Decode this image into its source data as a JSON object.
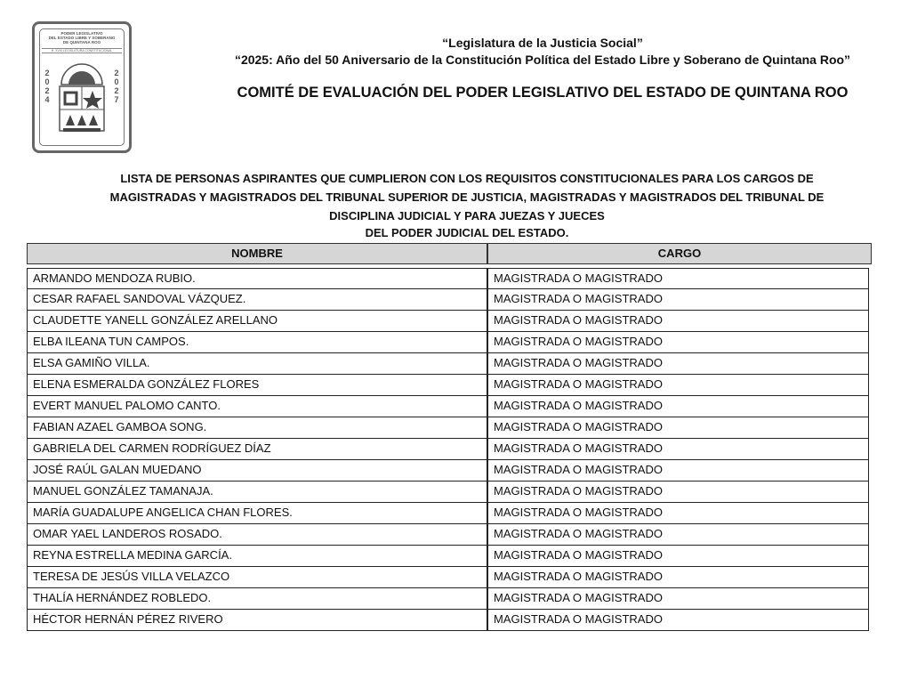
{
  "logo": {
    "lines": [
      "PODER LEGISLATIVO",
      "DEL ESTADO LIBRE Y SOBERANO",
      "DE QUINTANA ROO"
    ],
    "sub": "H. XVIII LEGISLATURA CONSTITUCIONAL",
    "year_left": "2024",
    "year_right": "2027"
  },
  "header": {
    "line1": "“Legislatura de la Justicia Social”",
    "line2": "“2025: Año del 50 Aniversario de la Constitución Política del Estado Libre y Soberano de Quintana Roo”",
    "committee": "COMITÉ DE EVALUACIÓN DEL PODER LEGISLATIVO DEL ESTADO DE QUINTANA ROO"
  },
  "title": {
    "l1": "LISTA DE PERSONAS ASPIRANTES QUE CUMPLIERON CON LOS REQUISITOS CONSTITUCIONALES PARA LOS CARGOS DE",
    "l2": "MAGISTRADAS Y MAGISTRADOS DEL TRIBUNAL SUPERIOR DE JUSTICIA, MAGISTRADAS Y MAGISTRADOS DEL TRIBUNAL DE",
    "l3": "DISCIPLINA JUDICIAL Y PARA JUEZAS Y JUECES",
    "l4": "DEL PODER JUDICIAL DEL ESTADO."
  },
  "table": {
    "headers": [
      "NOMBRE",
      "CARGO"
    ],
    "rows": [
      [
        "ARMANDO MENDOZA RUBIO.",
        "MAGISTRADA O MAGISTRADO"
      ],
      [
        "CESAR RAFAEL SANDOVAL VÁZQUEZ.",
        "MAGISTRADA O MAGISTRADO"
      ],
      [
        "CLAUDETTE YANELL GONZÁLEZ ARELLANO",
        "MAGISTRADA O MAGISTRADO"
      ],
      [
        "ELBA ILEANA TUN CAMPOS.",
        "MAGISTRADA O MAGISTRADO"
      ],
      [
        "ELSA GAMIÑO VILLA.",
        "MAGISTRADA O MAGISTRADO"
      ],
      [
        "ELENA ESMERALDA GONZÁLEZ FLORES",
        "MAGISTRADA O MAGISTRADO"
      ],
      [
        "EVERT MANUEL PALOMO CANTO.",
        "MAGISTRADA O MAGISTRADO"
      ],
      [
        "FABIAN AZAEL GAMBOA SONG.",
        "MAGISTRADA O MAGISTRADO"
      ],
      [
        "GABRIELA DEL CARMEN RODRÍGUEZ DÍAZ",
        "MAGISTRADA O MAGISTRADO"
      ],
      [
        "JOSÉ RAÚL GALAN MUEDANO",
        "MAGISTRADA O MAGISTRADO"
      ],
      [
        "MANUEL GONZÁLEZ TAMANAJA.",
        "MAGISTRADA O MAGISTRADO"
      ],
      [
        "MARÍA GUADALUPE ANGELICA CHAN FLORES.",
        "MAGISTRADA O MAGISTRADO"
      ],
      [
        "OMAR YAEL LANDEROS ROSADO.",
        "MAGISTRADA O MAGISTRADO"
      ],
      [
        "REYNA ESTRELLA MEDINA GARCÍA.",
        "MAGISTRADA O MAGISTRADO"
      ],
      [
        "TERESA DE JESÚS VILLA VELAZCO",
        "MAGISTRADA O MAGISTRADO"
      ],
      [
        "THALÍA HERNÁNDEZ ROBLEDO.",
        "MAGISTRADA O MAGISTRADO"
      ],
      [
        "HÉCTOR HERNÁN PÉREZ RIVERO",
        "MAGISTRADA O MAGISTRADO"
      ]
    ]
  }
}
